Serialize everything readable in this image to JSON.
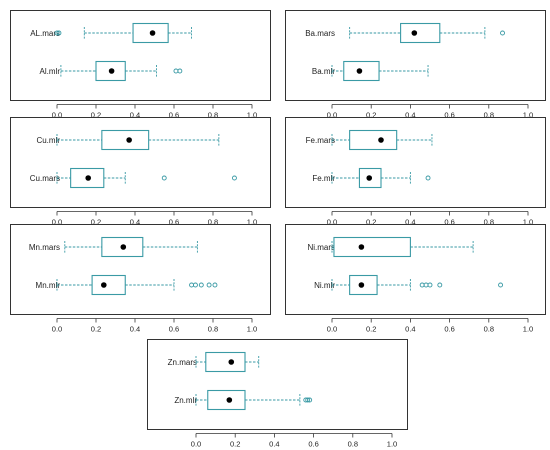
{
  "style": {
    "box_color": "#3a9aa5",
    "outlier_color": "#3a9aa5",
    "median_marker_color": "#000000",
    "frame_color": "#333333"
  },
  "chart_data": [
    {
      "type": "boxplot",
      "xlim": [
        0,
        1
      ],
      "x_ticks": [
        "0.0",
        "0.2",
        "0.4",
        "0.6",
        "0.8",
        "1.0"
      ],
      "series": [
        {
          "name": "AL.mars",
          "whisker_low": 0.14,
          "q1": 0.39,
          "mean_marker": 0.49,
          "q3": 0.57,
          "whisker_high": 0.69,
          "outliers": [
            0.0,
            0.01
          ]
        },
        {
          "name": "Al.mlr",
          "whisker_low": 0.02,
          "q1": 0.2,
          "mean_marker": 0.28,
          "q3": 0.35,
          "whisker_high": 0.51,
          "outliers": [
            0.61,
            0.63
          ]
        }
      ]
    },
    {
      "type": "boxplot",
      "xlim": [
        0,
        1
      ],
      "x_ticks": [
        "0.0",
        "0.2",
        "0.4",
        "0.6",
        "0.8",
        "1.0"
      ],
      "series": [
        {
          "name": "Ba.mars",
          "whisker_low": 0.09,
          "q1": 0.35,
          "mean_marker": 0.42,
          "q3": 0.55,
          "whisker_high": 0.78,
          "outliers": [
            0.87
          ]
        },
        {
          "name": "Ba.mlr",
          "whisker_low": 0.0,
          "q1": 0.06,
          "mean_marker": 0.14,
          "q3": 0.24,
          "whisker_high": 0.49,
          "outliers": []
        }
      ]
    },
    {
      "type": "boxplot",
      "xlim": [
        0,
        1
      ],
      "x_ticks": [
        "0.0",
        "0.2",
        "0.4",
        "0.6",
        "0.8",
        "1.0"
      ],
      "series": [
        {
          "name": "Cu.mlr",
          "whisker_low": 0.0,
          "q1": 0.23,
          "mean_marker": 0.37,
          "q3": 0.47,
          "whisker_high": 0.83,
          "outliers": []
        },
        {
          "name": "Cu.mars",
          "whisker_low": 0.0,
          "q1": 0.07,
          "mean_marker": 0.16,
          "q3": 0.24,
          "whisker_high": 0.35,
          "outliers": [
            0.55,
            0.91
          ]
        }
      ]
    },
    {
      "type": "boxplot",
      "xlim": [
        0,
        1
      ],
      "x_ticks": [
        "0.0",
        "0.2",
        "0.4",
        "0.6",
        "0.8",
        "1.0"
      ],
      "series": [
        {
          "name": "Fe.mars",
          "whisker_low": 0.0,
          "q1": 0.09,
          "mean_marker": 0.25,
          "q3": 0.33,
          "whisker_high": 0.51,
          "outliers": []
        },
        {
          "name": "Fe.mlr",
          "whisker_low": 0.0,
          "q1": 0.14,
          "mean_marker": 0.19,
          "q3": 0.25,
          "whisker_high": 0.4,
          "outliers": [
            0.49
          ]
        }
      ]
    },
    {
      "type": "boxplot",
      "xlim": [
        0,
        1
      ],
      "x_ticks": [
        "0.0",
        "0.2",
        "0.4",
        "0.6",
        "0.8",
        "1.0"
      ],
      "series": [
        {
          "name": "Mn.mars",
          "whisker_low": 0.04,
          "q1": 0.23,
          "mean_marker": 0.34,
          "q3": 0.44,
          "whisker_high": 0.72,
          "outliers": []
        },
        {
          "name": "Mn.mlr",
          "whisker_low": 0.0,
          "q1": 0.18,
          "mean_marker": 0.24,
          "q3": 0.35,
          "whisker_high": 0.6,
          "outliers": [
            0.69,
            0.71,
            0.74,
            0.78,
            0.81
          ]
        }
      ]
    },
    {
      "type": "boxplot",
      "xlim": [
        0,
        1
      ],
      "x_ticks": [
        "0.0",
        "0.2",
        "0.4",
        "0.6",
        "0.8",
        "1.0"
      ],
      "series": [
        {
          "name": "Ni.mars",
          "whisker_low": 0.0,
          "q1": 0.01,
          "mean_marker": 0.15,
          "q3": 0.4,
          "whisker_high": 0.72,
          "outliers": []
        },
        {
          "name": "Ni.mlr",
          "whisker_low": 0.0,
          "q1": 0.09,
          "mean_marker": 0.15,
          "q3": 0.23,
          "whisker_high": 0.4,
          "outliers": [
            0.46,
            0.48,
            0.5,
            0.55,
            0.86
          ]
        }
      ]
    },
    {
      "type": "boxplot",
      "xlim": [
        0,
        1
      ],
      "x_ticks": [
        "0.0",
        "0.2",
        "0.4",
        "0.6",
        "0.8",
        "1.0"
      ],
      "series": [
        {
          "name": "Zn.mars",
          "whisker_low": 0.0,
          "q1": 0.05,
          "mean_marker": 0.18,
          "q3": 0.25,
          "whisker_high": 0.32,
          "outliers": []
        },
        {
          "name": "Zn.mlr",
          "whisker_low": 0.0,
          "q1": 0.06,
          "mean_marker": 0.17,
          "q3": 0.25,
          "whisker_high": 0.53,
          "outliers": [
            0.56,
            0.57,
            0.58
          ]
        }
      ]
    }
  ]
}
